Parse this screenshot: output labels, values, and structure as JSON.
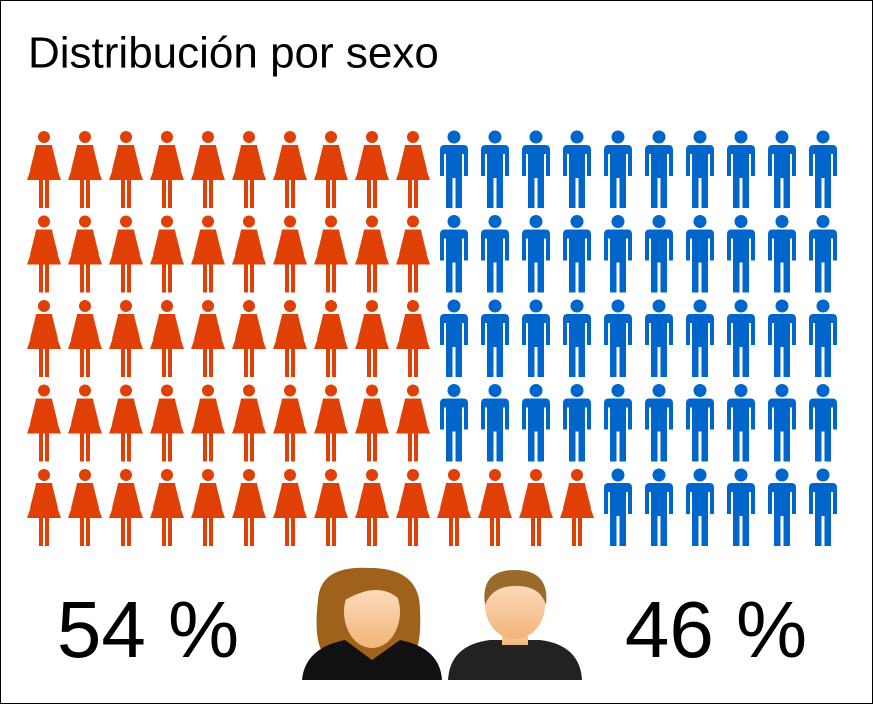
{
  "chart_data": {
    "type": "pictogram",
    "title": "Distribución por sexo",
    "values": [
      54,
      46
    ],
    "value_labels": [
      "54 %",
      "46 %"
    ],
    "colors": [
      "#e04006",
      "#0066cc"
    ]
  }
}
